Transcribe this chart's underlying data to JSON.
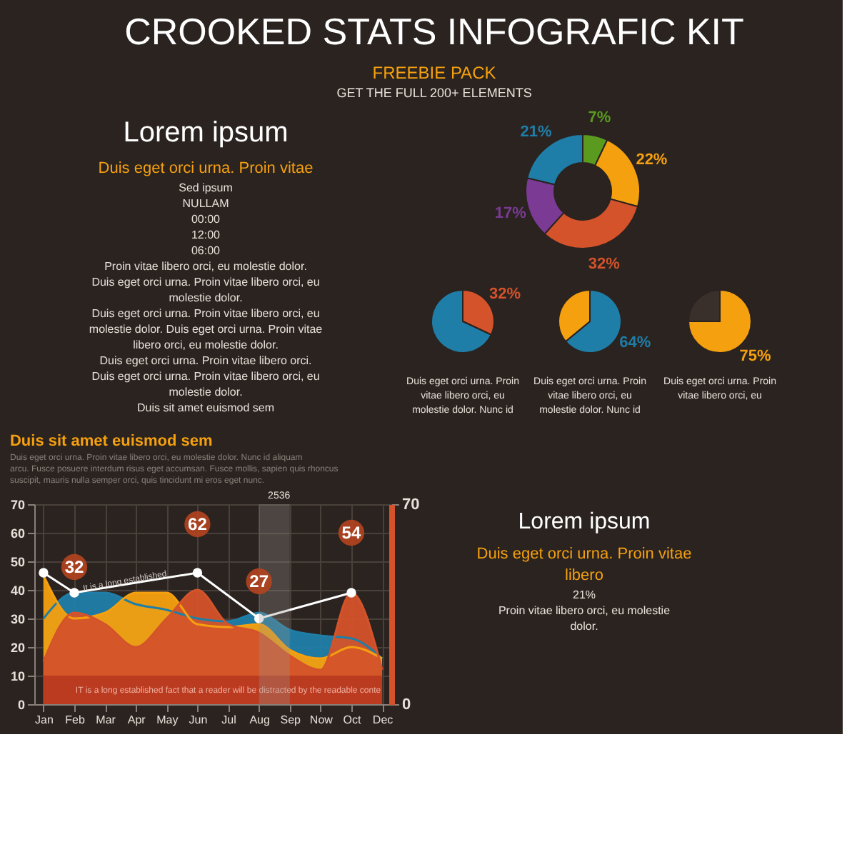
{
  "chart_data": [
    {
      "type": "other",
      "title": "CROOKED STATS INFOGRAFIC KIT",
      "subtitle": "FREEBIE PACK",
      "annotations": [
        "GET THE FULL 200+ ELEMENTS"
      ]
    },
    {
      "type": "other",
      "title": "Lorem ipsum",
      "subtitle": "Duis eget orci urna. Proin vitae",
      "annotations": [
        "Sed ipsum",
        "NULLAM",
        "00:00",
        "12:00",
        "06:00",
        "Proin vitae libero orci, eu molestie dolor.",
        "Duis eget orci urna. Proin vitae libero orci, eu molestie dolor.",
        "Duis eget orci urna. Proin vitae libero orci, eu molestie dolor. Duis eget orci urna. Proin vitae libero orci, eu molestie dolor.",
        "Duis eget orci urna. Proin vitae libero orci.",
        "Duis eget orci urna. Proin vitae libero orci, eu molestie dolor.",
        "Duis sit amet euismod sem"
      ]
    },
    {
      "type": "donut",
      "categories": [
        null,
        null,
        null,
        null,
        null
      ],
      "values": [
        7,
        22,
        32,
        17,
        21
      ],
      "colors": [
        "#5a9a1e",
        "#f5a00f",
        "#d4532a",
        "#7b3a94",
        "#1f7ea8"
      ],
      "value_labels": [
        "7%",
        "22%",
        "32%",
        "17%",
        "21%"
      ]
    },
    {
      "type": "pie",
      "categories": [
        null,
        null
      ],
      "values": [
        32,
        68
      ],
      "colors": [
        "#d4532a",
        "#1f7ea8"
      ],
      "value_labels": [
        "32%",
        null
      ],
      "annotations": [
        "Duis eget orci urna. Proin vitae libero orci, eu molestie dolor. Nunc id"
      ]
    },
    {
      "type": "pie",
      "categories": [
        null,
        null
      ],
      "values": [
        64,
        36
      ],
      "colors": [
        "#1f7ea8",
        "#f5a00f"
      ],
      "value_labels": [
        "64%",
        null
      ],
      "annotations": [
        "Duis eget orci urna. Proin vitae libero orci, eu molestie dolor. Nunc id"
      ]
    },
    {
      "type": "pie",
      "categories": [
        null,
        null
      ],
      "values": [
        75,
        25
      ],
      "colors": [
        "#f5a00f",
        "#3a302b"
      ],
      "value_labels": [
        "75%",
        null
      ],
      "annotations": [
        "Duis eget orci urna. Proin vitae libero orci, eu"
      ]
    },
    {
      "type": "area",
      "title": "Duis sit amet euismod sem",
      "subtitle": "Duis eget orci urna. Proin vitae libero orci, eu molestie dolor. Nunc id aliquam arcu. Fusce posuere interdum risus eget accumsan. Fusce mollis, sapien quis rhoncus suscipit, mauris nulla semper orci, quis tincidunt mi eros eget nunc.",
      "categories": [
        "Jan",
        "Feb",
        "Mar",
        "Apr",
        "May",
        "Jun",
        "Jul",
        "Aug",
        "Sep",
        "Now",
        "Oct",
        "Dec"
      ],
      "ylim": [
        0,
        70
      ],
      "yticks": [
        0,
        10,
        20,
        30,
        40,
        50,
        60,
        70
      ],
      "y2lim": [
        0,
        70
      ],
      "y2ticks": [
        0,
        70
      ],
      "grid": true,
      "series": [
        {
          "type": "area",
          "color": "#1f7ea8",
          "values": [
            30,
            39,
            39,
            35,
            33,
            30,
            29,
            32,
            26,
            24,
            23,
            16
          ]
        },
        {
          "type": "area",
          "color": "#f5a00f",
          "values": [
            45,
            30,
            32,
            39,
            39,
            28,
            27,
            28,
            19,
            16,
            20,
            16
          ]
        },
        {
          "type": "area",
          "color": "#d4532a",
          "values": [
            15,
            32,
            28,
            20,
            30,
            40,
            28,
            25,
            17,
            12,
            39,
            12
          ]
        },
        {
          "type": "line",
          "color": "#ffffff",
          "x": [
            "Jan",
            "Feb",
            "Jun",
            "Aug",
            "Oct"
          ],
          "values": [
            46,
            39,
            46,
            30,
            39
          ],
          "marker": "circle"
        }
      ],
      "bands": [
        {
          "axis": "y",
          "from": 0,
          "to": 10,
          "label": "IT is a long established fact that a reader will be distracted by the readable conte",
          "color": "#a8281a"
        },
        {
          "axis": "x",
          "from": "Aug",
          "to": "Sep",
          "label": "2536",
          "color": "#9a9490"
        }
      ],
      "annotations": [
        {
          "text": "32",
          "x": "Feb",
          "y": 48
        },
        {
          "text": "62",
          "x": "Jun",
          "y": 63
        },
        {
          "text": "27",
          "x": "Aug",
          "y": 43
        },
        {
          "text": "54",
          "x": "Oct",
          "y": 60
        },
        "It is a long established"
      ]
    },
    {
      "type": "other",
      "title": "Lorem ipsum",
      "subtitle": "Duis eget orci urna. Proin vitae libero",
      "annotations": [
        "21%",
        "Proin vitae libero orci, eu molestie dolor."
      ]
    }
  ]
}
